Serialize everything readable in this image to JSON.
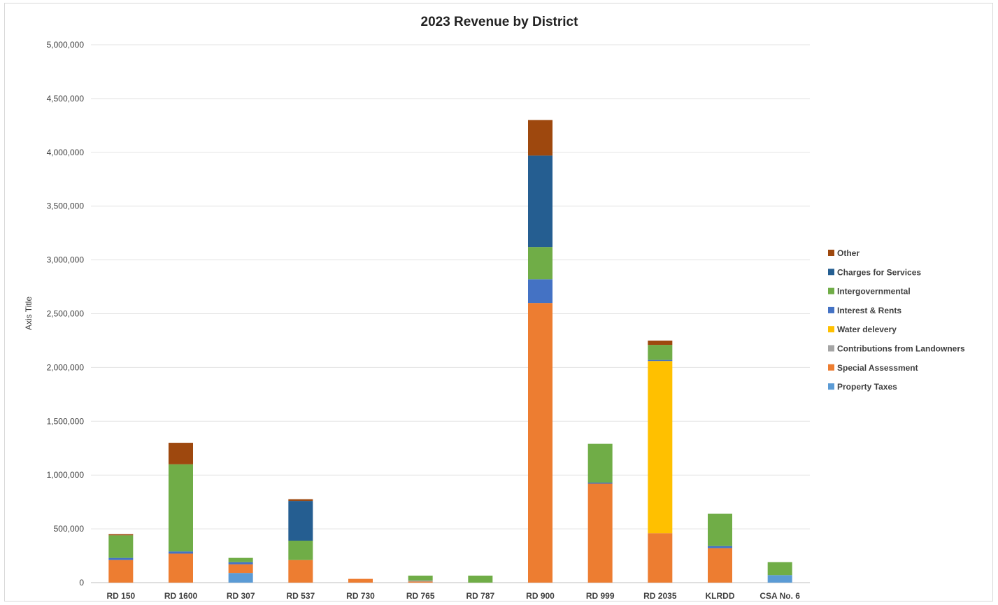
{
  "chart_data": {
    "type": "bar",
    "stacked": true,
    "title": "2023 Revenue by District",
    "xlabel": "",
    "ylabel": "Axis Title",
    "ylim": [
      0,
      5000000
    ],
    "y_ticks": [
      "0",
      "500,000",
      "1,000,000",
      "1,500,000",
      "2,000,000",
      "2,500,000",
      "3,000,000",
      "3,500,000",
      "4,000,000",
      "4,500,000",
      "5,000,000"
    ],
    "grid": true,
    "legend_position": "right",
    "categories": [
      "RD 150",
      "RD 1600",
      "RD 307",
      "RD 537",
      "RD 730",
      "RD 765",
      "RD 787",
      "RD 900",
      "RD 999",
      "RD 2035",
      "KLRDD",
      "CSA No. 6"
    ],
    "series": [
      {
        "name": "Property Taxes",
        "color": "#5b9bd5",
        "values": [
          0,
          0,
          90000,
          0,
          0,
          0,
          0,
          0,
          0,
          0,
          0,
          70000
        ]
      },
      {
        "name": "Special Assessment",
        "color": "#ed7d31",
        "values": [
          210000,
          270000,
          80000,
          210000,
          35000,
          10000,
          0,
          2600000,
          920000,
          460000,
          320000,
          0
        ]
      },
      {
        "name": "Contributions from Landowners",
        "color": "#a5a5a5",
        "values": [
          0,
          0,
          0,
          0,
          0,
          10000,
          0,
          0,
          0,
          0,
          0,
          0
        ]
      },
      {
        "name": "Water delevery",
        "color": "#ffc000",
        "values": [
          0,
          0,
          0,
          0,
          0,
          0,
          0,
          0,
          0,
          1600000,
          0,
          0
        ]
      },
      {
        "name": "Interest & Rents",
        "color": "#4472c4",
        "values": [
          20000,
          20000,
          20000,
          0,
          0,
          0,
          0,
          220000,
          10000,
          10000,
          20000,
          0
        ]
      },
      {
        "name": "Intergovernmental",
        "color": "#70ad47",
        "values": [
          210000,
          810000,
          40000,
          180000,
          0,
          45000,
          65000,
          300000,
          360000,
          140000,
          300000,
          120000
        ]
      },
      {
        "name": "Charges for Services",
        "color": "#255e91",
        "values": [
          0,
          0,
          0,
          370000,
          0,
          0,
          0,
          850000,
          0,
          0,
          0,
          0
        ]
      },
      {
        "name": "Other",
        "color": "#9e480e",
        "values": [
          10000,
          200000,
          0,
          15000,
          0,
          0,
          0,
          330000,
          0,
          40000,
          0,
          0
        ]
      }
    ],
    "legend_order": [
      "Other",
      "Charges for Services",
      "Intergovernmental",
      "Interest & Rents",
      "Water delevery",
      "Contributions from Landowners",
      "Special Assessment",
      "Property Taxes"
    ]
  }
}
